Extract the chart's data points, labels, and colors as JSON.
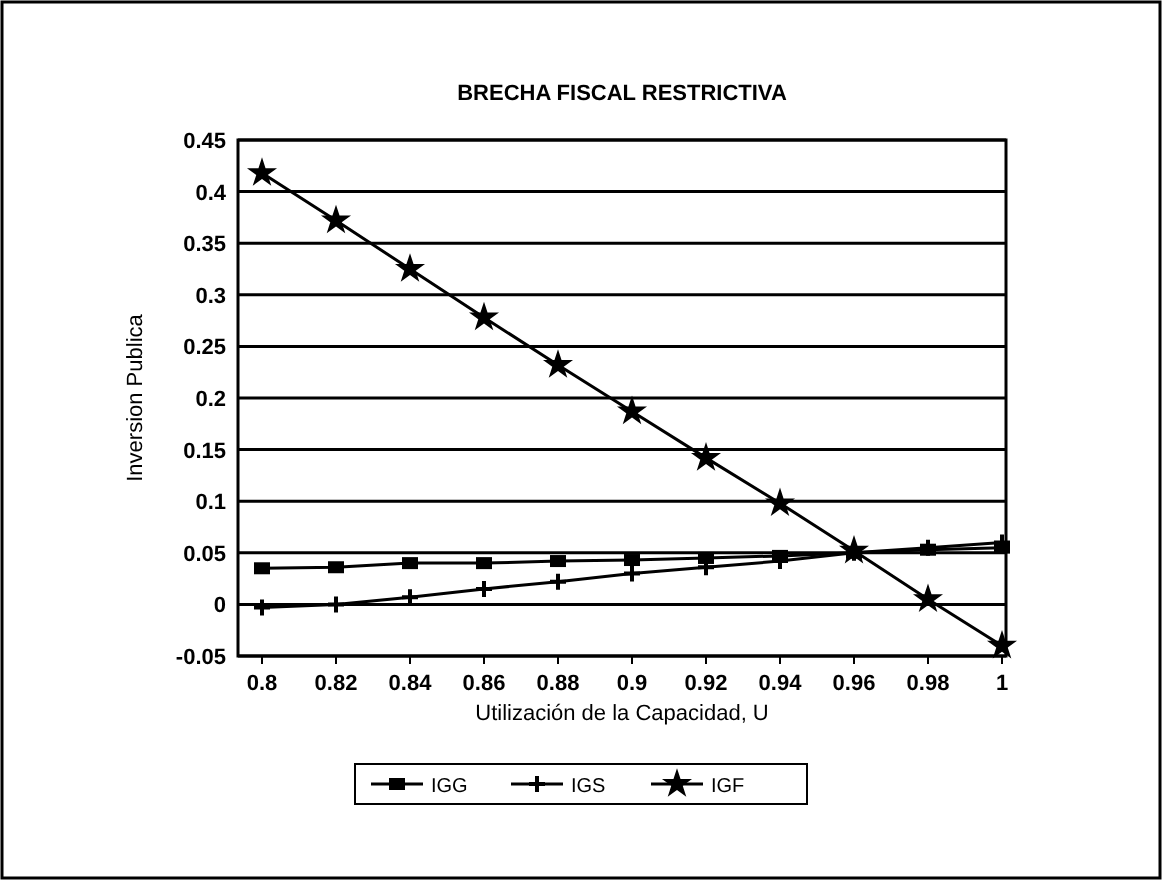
{
  "chart_data": {
    "type": "line",
    "title": "BRECHA FISCAL RESTRICTIVA",
    "xlabel": "Utilización de la Capacidad, U",
    "ylabel": "Inversion Publica",
    "categories": [
      "0.8",
      "0.82",
      "0.84",
      "0.86",
      "0.88",
      "0.9",
      "0.92",
      "0.94",
      "0.96",
      "0.98",
      "1"
    ],
    "series": [
      {
        "name": "IGG",
        "color": "#000000",
        "marker": "square",
        "values": [
          0.035,
          0.036,
          0.04,
          0.04,
          0.042,
          0.043,
          0.045,
          0.047,
          0.05,
          0.053,
          0.055
        ]
      },
      {
        "name": "IGS",
        "color": "#000000",
        "marker": "cross",
        "values": [
          -0.003,
          0,
          0.007,
          0.015,
          0.022,
          0.03,
          0.036,
          0.042,
          0.05,
          0.055,
          0.06
        ]
      },
      {
        "name": "IGF",
        "color": "#000000",
        "marker": "star",
        "values": [
          0.418,
          0.372,
          0.325,
          0.278,
          0.232,
          0.187,
          0.142,
          0.098,
          0.052,
          0.005,
          -0.04
        ]
      }
    ],
    "ylim": [
      -0.05,
      0.45
    ],
    "yticks": [
      -0.05,
      0,
      0.05,
      0.1,
      0.15,
      0.2,
      0.25,
      0.3,
      0.35,
      0.4,
      0.45
    ],
    "grid": "y",
    "legend": "bottom",
    "line_style": "solid"
  }
}
